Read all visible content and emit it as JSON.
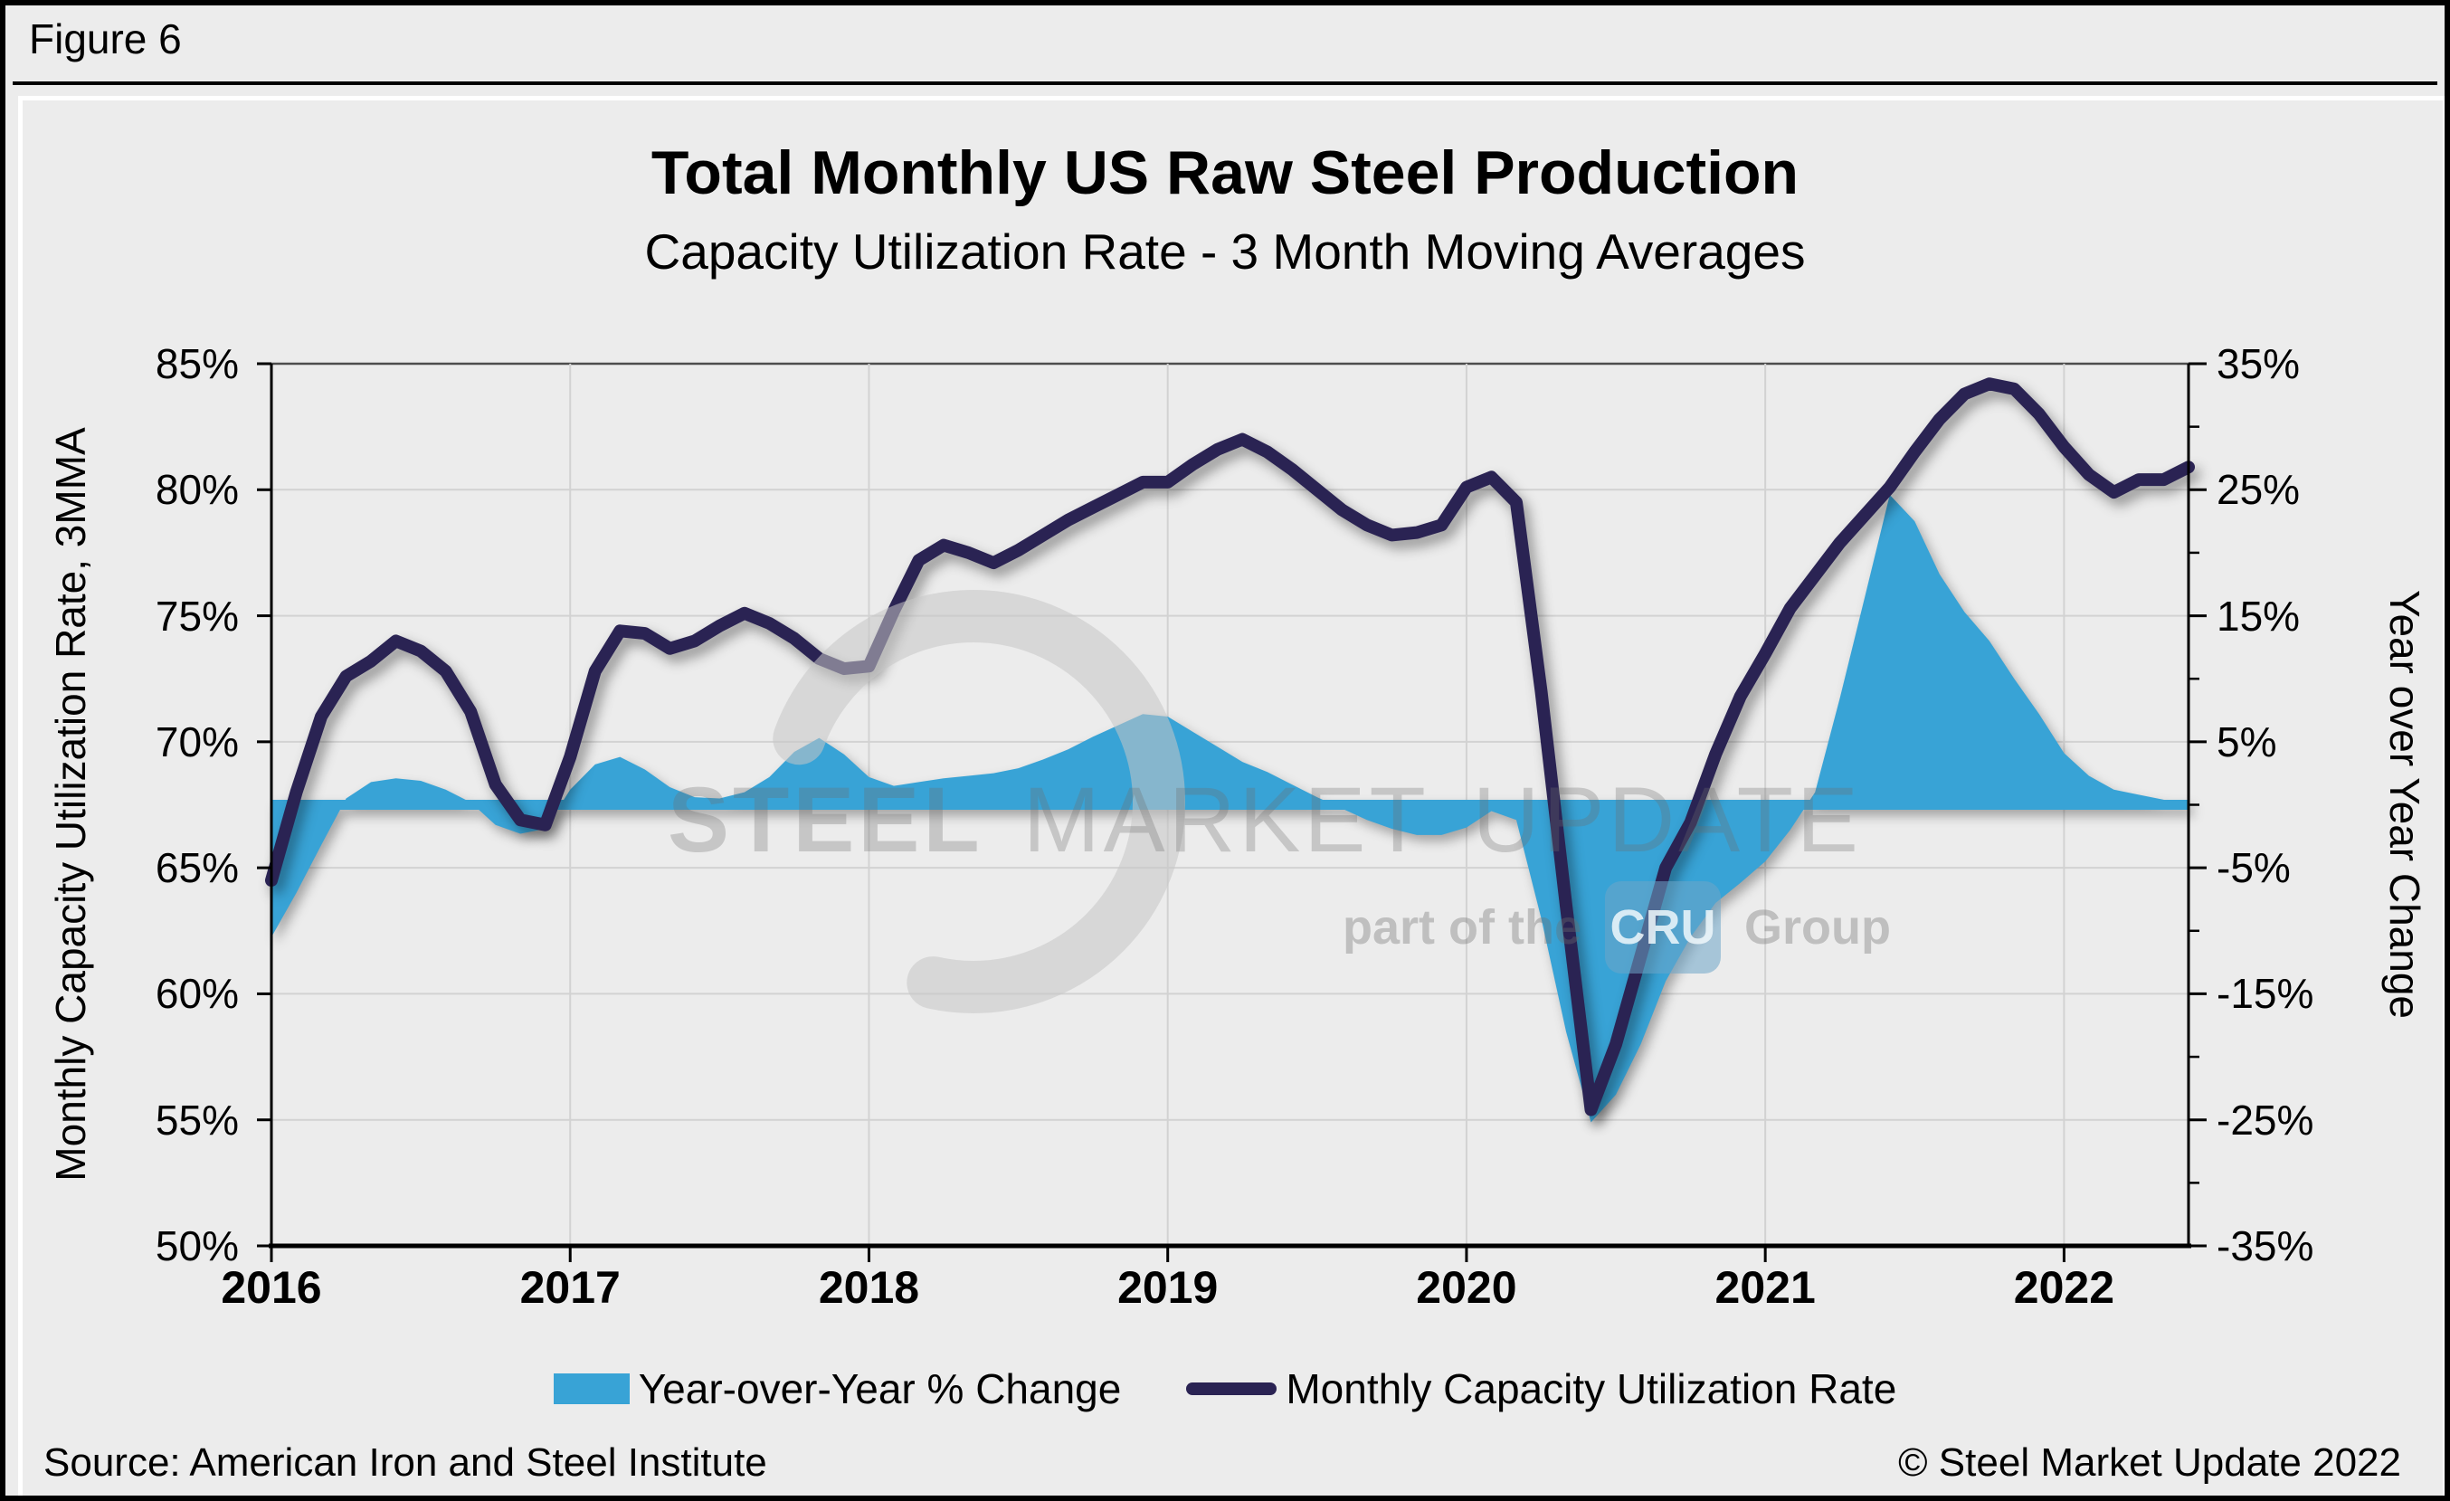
{
  "figure_label": "Figure 6",
  "watermark": {
    "word1": "STEEL",
    "word2": "MARKET",
    "word3": "UPDATE",
    "part_of_the": "part of the",
    "cru": "CRU",
    "group": "Group"
  },
  "footer": {
    "source": "Source: American Iron and Steel Institute",
    "copyright": "© Steel Market Update 2022"
  },
  "chart_data": {
    "type": "line+area",
    "title": "Total Monthly US Raw Steel Production",
    "subtitle": "Capacity Utilization Rate - 3 Month Moving Averages",
    "x_start": "2016-01",
    "x_end": "2022-06",
    "points": 78,
    "grid": true,
    "legend_position": "bottom",
    "background": "#ececec",
    "gridline_color": "#d2d2d2",
    "x_axis": {
      "years": [
        "2016",
        "2017",
        "2018",
        "2019",
        "2020",
        "2021",
        "2022"
      ]
    },
    "left_axis": {
      "title": "Monthly Capacity Utilization Rate, 3MMA",
      "min": 50,
      "max": 85,
      "step": 5,
      "ticks": [
        "85%",
        "80%",
        "75%",
        "70%",
        "65%",
        "60%",
        "55%",
        "50%"
      ]
    },
    "right_axis": {
      "title": "Year over Year Change",
      "min": -35,
      "max": 35,
      "step": 10,
      "baseline": 0,
      "ticks": [
        "35%",
        "25%",
        "15%",
        "5%",
        "-5%",
        "-15%",
        "-25%",
        "-35%"
      ]
    },
    "series": [
      {
        "name": "Year-over-Year % Change",
        "type": "area",
        "axis": "right",
        "color": "#38a3d6",
        "values": [
          -10.5,
          -7.0,
          -3.2,
          0.5,
          1.8,
          2.1,
          1.9,
          1.2,
          0.2,
          -1.6,
          -2.3,
          -1.9,
          1.2,
          3.2,
          3.8,
          2.8,
          1.4,
          0.6,
          0.5,
          1.0,
          2.2,
          4.2,
          5.3,
          4.0,
          2.2,
          1.5,
          1.8,
          2.1,
          2.3,
          2.5,
          2.9,
          3.6,
          4.4,
          5.4,
          6.3,
          7.2,
          7.0,
          5.8,
          4.6,
          3.4,
          2.6,
          1.6,
          0.6,
          -0.3,
          -1.2,
          -1.9,
          -2.4,
          -2.4,
          -1.8,
          -0.5,
          -1.2,
          -9.0,
          -18.0,
          -25.2,
          -23.0,
          -19.0,
          -14.0,
          -10.5,
          -7.8,
          -6.2,
          -4.5,
          -2.0,
          1.0,
          8.5,
          16.5,
          24.6,
          22.5,
          18.3,
          15.3,
          13.0,
          10.0,
          7.2,
          4.1,
          2.3,
          1.2,
          0.8,
          0.4,
          -0.3
        ]
      },
      {
        "name": "Monthly Capacity Utilization Rate",
        "type": "line",
        "axis": "left",
        "color": "#2a2353",
        "values": [
          64.5,
          68.0,
          71.0,
          72.6,
          73.2,
          74.0,
          73.6,
          72.8,
          71.2,
          68.3,
          66.9,
          66.7,
          69.4,
          72.8,
          74.4,
          74.3,
          73.7,
          74.0,
          74.6,
          75.1,
          74.7,
          74.1,
          73.3,
          72.9,
          73.0,
          75.2,
          77.2,
          77.8,
          77.5,
          77.1,
          77.6,
          78.2,
          78.8,
          79.3,
          79.8,
          80.3,
          80.3,
          81.0,
          81.6,
          82.0,
          81.5,
          80.8,
          80.0,
          79.2,
          78.6,
          78.2,
          78.3,
          78.6,
          80.1,
          80.5,
          79.5,
          72.0,
          63.5,
          55.4,
          58.0,
          61.5,
          65.0,
          66.8,
          69.5,
          71.8,
          73.5,
          75.3,
          76.6,
          77.9,
          79.0,
          80.1,
          81.5,
          82.8,
          83.8,
          84.2,
          84.0,
          83.0,
          81.7,
          80.6,
          79.9,
          80.4,
          80.4,
          80.9
        ]
      }
    ]
  }
}
